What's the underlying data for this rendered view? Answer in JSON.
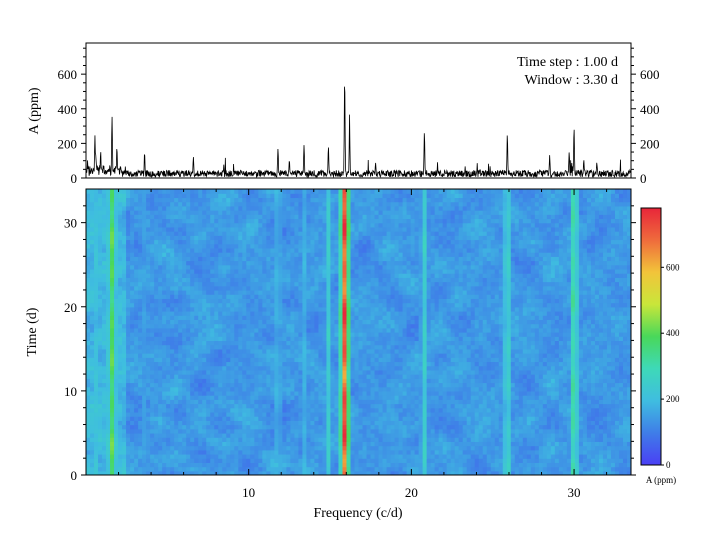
{
  "chart_data": [
    {
      "type": "line",
      "panel": "amplitude-spectrum",
      "title": "",
      "xlabel": "",
      "ylabel": "A (ppm)",
      "xlim": [
        0,
        33.5
      ],
      "ylim": [
        0,
        780
      ],
      "yticks": [
        0,
        200,
        400,
        600
      ],
      "annotations": [
        "Time step : 1.00 d",
        "Window : 3.30 d"
      ],
      "peaks": [
        {
          "x": 0.6,
          "y": 150
        },
        {
          "x": 0.55,
          "y": 255
        },
        {
          "x": 0.9,
          "y": 170
        },
        {
          "x": 1.6,
          "y": 370
        },
        {
          "x": 1.9,
          "y": 200
        },
        {
          "x": 3.6,
          "y": 160
        },
        {
          "x": 6.6,
          "y": 140
        },
        {
          "x": 11.8,
          "y": 190
        },
        {
          "x": 12.5,
          "y": 120
        },
        {
          "x": 13.4,
          "y": 220
        },
        {
          "x": 14.9,
          "y": 195
        },
        {
          "x": 15.9,
          "y": 610
        },
        {
          "x": 16.2,
          "y": 320
        },
        {
          "x": 17.8,
          "y": 100
        },
        {
          "x": 20.8,
          "y": 280
        },
        {
          "x": 25.9,
          "y": 265
        },
        {
          "x": 28.5,
          "y": 140
        },
        {
          "x": 29.7,
          "y": 175
        },
        {
          "x": 30.0,
          "y": 305
        },
        {
          "x": 30.6,
          "y": 120
        },
        {
          "x": 31.4,
          "y": 105
        }
      ],
      "noise_level": 30
    },
    {
      "type": "heatmap",
      "panel": "time-frequency",
      "title": "",
      "xlabel": "Frequency (c/d)",
      "ylabel": "Time (d)",
      "xlim": [
        0,
        33.5
      ],
      "ylim": [
        0,
        34
      ],
      "xticks": [
        10,
        20,
        30
      ],
      "yticks": [
        0,
        10,
        20,
        30
      ],
      "colorbar": {
        "label": "A (ppm)",
        "min": 0,
        "max": 780,
        "ticks": [
          0,
          200,
          400,
          600
        ]
      },
      "colormap": [
        "#4a3ff5",
        "#3f7de8",
        "#3fbde0",
        "#3ed9b8",
        "#49d85a",
        "#c9e63a",
        "#f2c43a",
        "#ef6b3c",
        "#e8263a"
      ],
      "background_level": 140,
      "ridges": [
        {
          "freq": 0.6,
          "amp": 200
        },
        {
          "freq": 1.6,
          "amp": 380
        },
        {
          "freq": 3.6,
          "amp": 150
        },
        {
          "freq": 11.8,
          "amp": 190
        },
        {
          "freq": 13.4,
          "amp": 180
        },
        {
          "freq": 14.9,
          "amp": 240
        },
        {
          "freq": 15.9,
          "amp": 720
        },
        {
          "freq": 20.8,
          "amp": 250
        },
        {
          "freq": 25.9,
          "amp": 260
        },
        {
          "freq": 30.0,
          "amp": 320
        }
      ]
    }
  ]
}
